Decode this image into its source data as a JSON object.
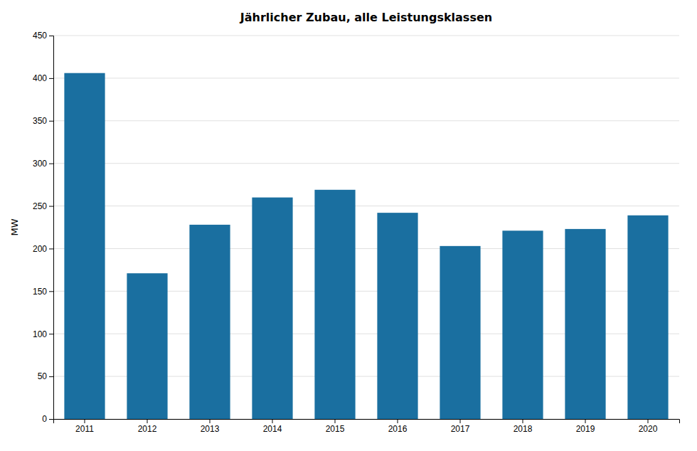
{
  "chart_data": {
    "type": "bar",
    "title": "Jährlicher Zubau, alle Leistungsklassen",
    "ylabel": "MW",
    "categories": [
      "2011",
      "2012",
      "2013",
      "2014",
      "2015",
      "2016",
      "2017",
      "2018",
      "2019",
      "2020"
    ],
    "values": [
      406,
      171,
      228,
      260,
      269,
      242,
      203,
      221,
      223,
      239
    ],
    "color": "#1a6fa0",
    "ylim": [
      0,
      450
    ],
    "yticks": [
      0,
      50,
      100,
      150,
      200,
      250,
      300,
      350,
      400,
      450
    ],
    "grid": true
  }
}
